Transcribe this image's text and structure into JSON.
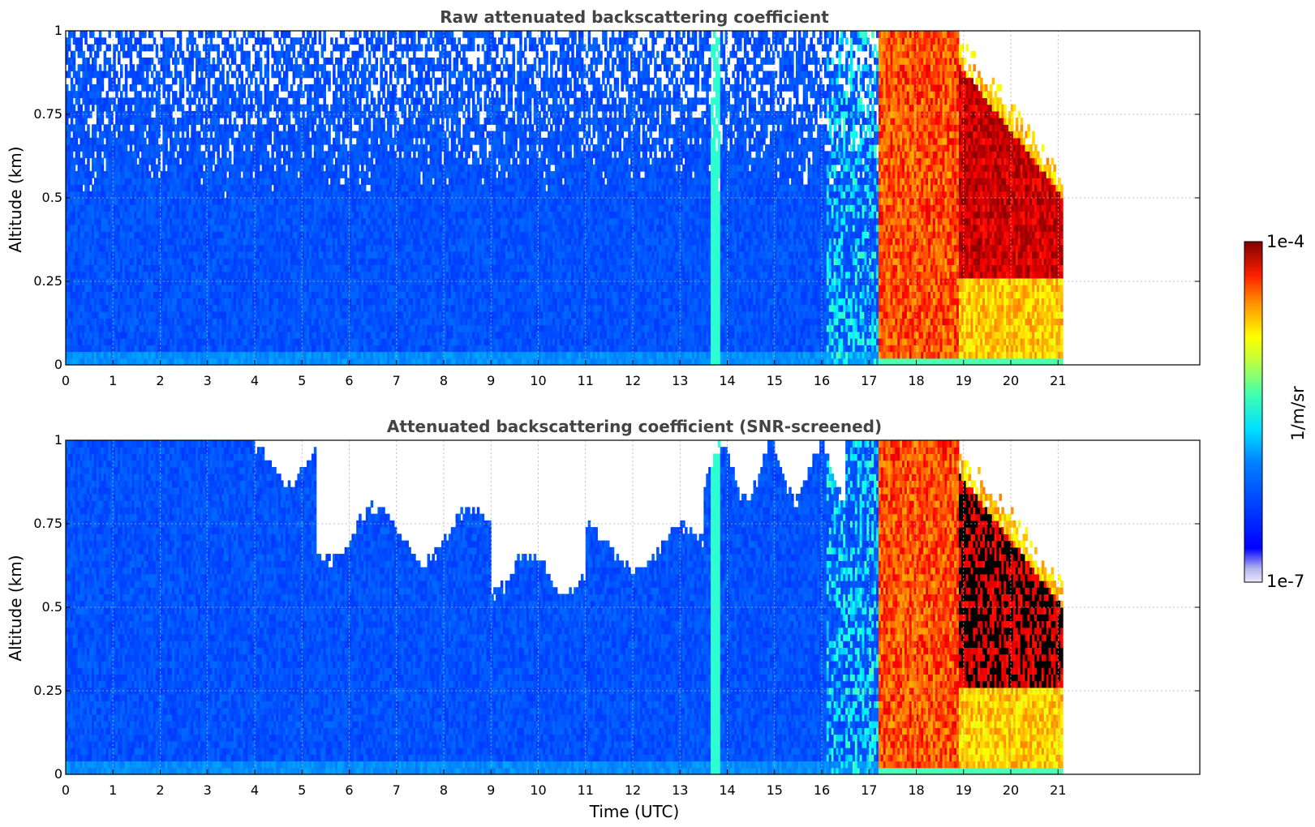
{
  "chart_data": [
    {
      "type": "heatmap",
      "title": "Raw attenuated backscattering coefficient",
      "xlabel": "",
      "ylabel": "Altitude (km)",
      "xlim": [
        0,
        24
      ],
      "ylim": [
        0,
        1
      ],
      "xticks": [
        "0",
        "1",
        "2",
        "3",
        "4",
        "5",
        "6",
        "7",
        "8",
        "9",
        "10",
        "11",
        "12",
        "13",
        "14",
        "15",
        "16",
        "17",
        "18",
        "19",
        "20",
        "21"
      ],
      "yticks": [
        "0",
        "0.25",
        "0.5",
        "0.75",
        "1"
      ],
      "grid": true,
      "data_end_hour": 21.1,
      "screened": false,
      "description_series": [
        {
          "range_utc": [
            0,
            17.2
          ],
          "level": "low (blue, ~1e-6 1/m/sr), noisy above 0.4 km"
        },
        {
          "range_utc": [
            13.7,
            13.8
          ],
          "level": "cyan vertical streak"
        },
        {
          "range_utc": [
            17.2,
            21.1
          ],
          "level": "high (yellow to dark red, up to 1e-4 1/m/sr)"
        }
      ]
    },
    {
      "type": "heatmap",
      "title": "Attenuated backscattering coefficient (SNR-screened)",
      "xlabel": "Time (UTC)",
      "ylabel": "Altitude (km)",
      "xlim": [
        0,
        24
      ],
      "ylim": [
        0,
        1
      ],
      "xticks": [
        "0",
        "1",
        "2",
        "3",
        "4",
        "5",
        "6",
        "7",
        "8",
        "9",
        "10",
        "11",
        "12",
        "13",
        "14",
        "15",
        "16",
        "17",
        "18",
        "19",
        "20",
        "21"
      ],
      "yticks": [
        "0",
        "0.25",
        "0.5",
        "0.75",
        "1"
      ],
      "grid": true,
      "data_end_hour": 21.1,
      "screened": true
    }
  ],
  "colorbar": {
    "label": "1/m/sr",
    "min_label": "1e-7",
    "max_label": "1e-4",
    "colormap": "jet",
    "low_color": "#e6e6f8",
    "high_color": "#7f0000"
  }
}
